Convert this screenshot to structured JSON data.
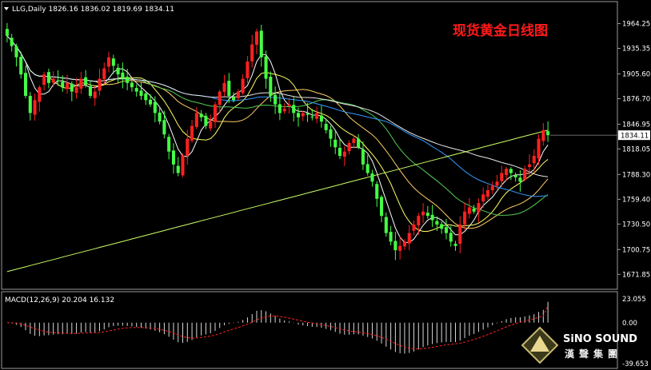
{
  "header": {
    "symbol_info": "LLG,Daily  1826.16 1836.02 1819.69 1834.11",
    "chart_title": "现货黄金日线图",
    "macd_label": "MACD(12,26,9) 20.204 16.132"
  },
  "logo": {
    "name_en": "SiNO SOUND",
    "name_cn": "漢聲集團"
  },
  "colors": {
    "background": "#000000",
    "bull_candle": "#ff2020",
    "bear_candle": "#44ff44",
    "title": "#ff1a1a",
    "ma_fast": "#ffffff",
    "ma_yellow": "#ffff66",
    "ma_orange": "#ffcc66",
    "ma_green": "#55cc55",
    "ma_blue": "#3399ff",
    "ma_slow_white": "#e8e8e8",
    "ma_long": "#ccff66",
    "macd_hist": "#d8d8d8",
    "macd_signal": "#ff2020"
  },
  "chart_data": {
    "type": "candlestick",
    "title": "现货黄金日线图",
    "symbol": "LLG",
    "timeframe": "Daily",
    "last": {
      "open": 1826.16,
      "high": 1836.02,
      "low": 1819.69,
      "close": 1834.11
    },
    "current_price_label": "1834.11",
    "y_ticks": [
      "1964.25",
      "1935.35",
      "1905.60",
      "1876.70",
      "1846.95",
      "1818.05",
      "1788.30",
      "1759.40",
      "1730.50",
      "1700.75",
      "1671.85"
    ],
    "ylim": [
      1660,
      1975
    ],
    "closes_approx": [
      1950,
      1938,
      1925,
      1905,
      1880,
      1860,
      1875,
      1890,
      1905,
      1895,
      1900,
      1898,
      1890,
      1895,
      1885,
      1890,
      1900,
      1893,
      1880,
      1885,
      1900,
      1912,
      1925,
      1915,
      1905,
      1900,
      1895,
      1890,
      1885,
      1880,
      1875,
      1870,
      1860,
      1850,
      1835,
      1815,
      1800,
      1790,
      1810,
      1830,
      1845,
      1860,
      1855,
      1845,
      1850,
      1870,
      1885,
      1895,
      1880,
      1875,
      1885,
      1900,
      1920,
      1940,
      1955,
      1925,
      1900,
      1880,
      1870,
      1860,
      1865,
      1870,
      1860,
      1855,
      1860,
      1858,
      1855,
      1860,
      1850,
      1840,
      1830,
      1820,
      1810,
      1815,
      1825,
      1830,
      1820,
      1800,
      1790,
      1780,
      1760,
      1740,
      1720,
      1710,
      1700,
      1705,
      1710,
      1720,
      1730,
      1740,
      1745,
      1740,
      1735,
      1730,
      1725,
      1720,
      1710,
      1705,
      1730,
      1745,
      1750,
      1745,
      1755,
      1765,
      1770,
      1775,
      1780,
      1790,
      1795,
      1790,
      1785,
      1780,
      1795,
      1800,
      1810,
      1830,
      1840,
      1834.11
    ],
    "macd": {
      "label": "MACD(12,26,9)",
      "macd_value": 20.204,
      "signal_value": 16.132,
      "y_ticks": [
        "23.055",
        "0.00",
        "-39.653"
      ],
      "ylim": [
        -39.653,
        23.055
      ]
    }
  }
}
